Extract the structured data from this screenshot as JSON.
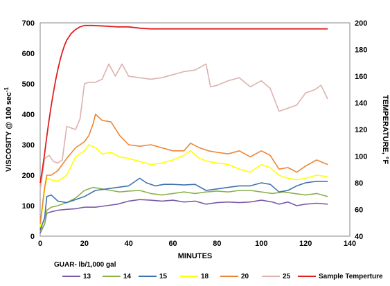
{
  "chart_data": {
    "type": "line",
    "title": "",
    "xlabel": "MINUTES",
    "ylabel_left": "VISCOSITY @ 100 sec",
    "ylabel_left_sup": "-1",
    "ylabel_right": "TEMPERATURE, °F",
    "legend_title": "GUAR- lb/1,000 gal",
    "legend_position": "bottom",
    "xlim": [
      0,
      140
    ],
    "ylim_left": [
      0,
      700
    ],
    "ylim_right": [
      40,
      200
    ],
    "x_ticks": [
      0,
      20,
      40,
      60,
      80,
      100,
      120,
      140
    ],
    "y_left_ticks": [
      0,
      100,
      200,
      300,
      400,
      500,
      600,
      700
    ],
    "y_right_ticks": [
      40,
      60,
      80,
      100,
      120,
      140,
      160,
      180,
      200
    ],
    "grid": false,
    "series": [
      {
        "name": "13",
        "axis": "left",
        "color": "#7b5aa6",
        "points": [
          [
            0,
            10
          ],
          [
            2,
            40
          ],
          [
            3,
            75
          ],
          [
            5,
            80
          ],
          [
            8,
            85
          ],
          [
            12,
            88
          ],
          [
            16,
            90
          ],
          [
            20,
            95
          ],
          [
            25,
            95
          ],
          [
            30,
            100
          ],
          [
            35,
            105
          ],
          [
            40,
            115
          ],
          [
            45,
            120
          ],
          [
            50,
            118
          ],
          [
            55,
            115
          ],
          [
            60,
            118
          ],
          [
            65,
            112
          ],
          [
            70,
            115
          ],
          [
            75,
            105
          ],
          [
            80,
            110
          ],
          [
            85,
            112
          ],
          [
            90,
            110
          ],
          [
            95,
            112
          ],
          [
            100,
            118
          ],
          [
            105,
            112
          ],
          [
            108,
            105
          ],
          [
            112,
            112
          ],
          [
            116,
            100
          ],
          [
            120,
            105
          ],
          [
            125,
            108
          ],
          [
            130,
            105
          ]
        ]
      },
      {
        "name": "14",
        "axis": "left",
        "color": "#8db14c",
        "points": [
          [
            0,
            15
          ],
          [
            2,
            40
          ],
          [
            3,
            85
          ],
          [
            5,
            95
          ],
          [
            8,
            100
          ],
          [
            12,
            110
          ],
          [
            16,
            125
          ],
          [
            20,
            150
          ],
          [
            24,
            160
          ],
          [
            28,
            155
          ],
          [
            32,
            150
          ],
          [
            36,
            145
          ],
          [
            40,
            148
          ],
          [
            45,
            150
          ],
          [
            50,
            140
          ],
          [
            55,
            135
          ],
          [
            60,
            140
          ],
          [
            65,
            145
          ],
          [
            70,
            140
          ],
          [
            75,
            145
          ],
          [
            80,
            148
          ],
          [
            85,
            145
          ],
          [
            90,
            150
          ],
          [
            95,
            150
          ],
          [
            100,
            145
          ],
          [
            105,
            140
          ],
          [
            110,
            145
          ],
          [
            115,
            140
          ],
          [
            120,
            135
          ],
          [
            125,
            140
          ],
          [
            130,
            130
          ]
        ]
      },
      {
        "name": "15",
        "axis": "left",
        "color": "#3d72b0",
        "points": [
          [
            0,
            20
          ],
          [
            2,
            60
          ],
          [
            3,
            130
          ],
          [
            5,
            135
          ],
          [
            8,
            115
          ],
          [
            12,
            110
          ],
          [
            16,
            120
          ],
          [
            20,
            130
          ],
          [
            25,
            150
          ],
          [
            30,
            155
          ],
          [
            35,
            160
          ],
          [
            40,
            165
          ],
          [
            45,
            190
          ],
          [
            48,
            175
          ],
          [
            52,
            165
          ],
          [
            56,
            170
          ],
          [
            60,
            170
          ],
          [
            65,
            168
          ],
          [
            70,
            170
          ],
          [
            75,
            150
          ],
          [
            80,
            155
          ],
          [
            85,
            160
          ],
          [
            90,
            165
          ],
          [
            95,
            165
          ],
          [
            100,
            175
          ],
          [
            104,
            170
          ],
          [
            108,
            145
          ],
          [
            112,
            150
          ],
          [
            116,
            165
          ],
          [
            120,
            175
          ],
          [
            125,
            180
          ],
          [
            130,
            180
          ]
        ]
      },
      {
        "name": "18",
        "axis": "left",
        "color": "#ffff00",
        "points": [
          [
            0,
            30
          ],
          [
            2,
            150
          ],
          [
            3,
            190
          ],
          [
            5,
            185
          ],
          [
            8,
            180
          ],
          [
            12,
            200
          ],
          [
            16,
            260
          ],
          [
            20,
            280
          ],
          [
            22,
            300
          ],
          [
            25,
            290
          ],
          [
            28,
            270
          ],
          [
            32,
            275
          ],
          [
            36,
            260
          ],
          [
            40,
            255
          ],
          [
            45,
            245
          ],
          [
            50,
            235
          ],
          [
            55,
            240
          ],
          [
            60,
            250
          ],
          [
            65,
            265
          ],
          [
            68,
            280
          ],
          [
            72,
            255
          ],
          [
            76,
            245
          ],
          [
            80,
            240
          ],
          [
            85,
            235
          ],
          [
            90,
            220
          ],
          [
            95,
            210
          ],
          [
            100,
            235
          ],
          [
            104,
            225
          ],
          [
            108,
            200
          ],
          [
            112,
            190
          ],
          [
            116,
            185
          ],
          [
            120,
            190
          ],
          [
            125,
            200
          ],
          [
            130,
            195
          ]
        ]
      },
      {
        "name": "20",
        "axis": "left",
        "color": "#ee8433",
        "points": [
          [
            0,
            40
          ],
          [
            2,
            160
          ],
          [
            3,
            200
          ],
          [
            5,
            200
          ],
          [
            8,
            215
          ],
          [
            12,
            255
          ],
          [
            16,
            290
          ],
          [
            20,
            310
          ],
          [
            22,
            330
          ],
          [
            24,
            370
          ],
          [
            25,
            400
          ],
          [
            28,
            380
          ],
          [
            32,
            375
          ],
          [
            36,
            330
          ],
          [
            40,
            300
          ],
          [
            45,
            295
          ],
          [
            50,
            300
          ],
          [
            55,
            290
          ],
          [
            60,
            280
          ],
          [
            65,
            280
          ],
          [
            68,
            305
          ],
          [
            72,
            290
          ],
          [
            76,
            280
          ],
          [
            80,
            275
          ],
          [
            85,
            270
          ],
          [
            90,
            280
          ],
          [
            95,
            260
          ],
          [
            100,
            280
          ],
          [
            104,
            265
          ],
          [
            108,
            220
          ],
          [
            112,
            225
          ],
          [
            116,
            210
          ],
          [
            120,
            230
          ],
          [
            125,
            250
          ],
          [
            130,
            235
          ]
        ]
      },
      {
        "name": "25",
        "axis": "left",
        "color": "#dcb1ae",
        "points": [
          [
            0,
            150
          ],
          [
            2,
            255
          ],
          [
            4,
            265
          ],
          [
            6,
            245
          ],
          [
            8,
            240
          ],
          [
            10,
            250
          ],
          [
            12,
            360
          ],
          [
            16,
            350
          ],
          [
            18,
            385
          ],
          [
            20,
            500
          ],
          [
            22,
            505
          ],
          [
            25,
            505
          ],
          [
            28,
            515
          ],
          [
            31,
            565
          ],
          [
            34,
            525
          ],
          [
            37,
            565
          ],
          [
            40,
            525
          ],
          [
            45,
            520
          ],
          [
            50,
            515
          ],
          [
            55,
            520
          ],
          [
            60,
            530
          ],
          [
            65,
            540
          ],
          [
            70,
            545
          ],
          [
            75,
            565
          ],
          [
            77,
            490
          ],
          [
            80,
            495
          ],
          [
            85,
            510
          ],
          [
            90,
            520
          ],
          [
            95,
            490
          ],
          [
            100,
            510
          ],
          [
            104,
            485
          ],
          [
            108,
            410
          ],
          [
            112,
            420
          ],
          [
            116,
            430
          ],
          [
            120,
            470
          ],
          [
            124,
            480
          ],
          [
            127,
            495
          ],
          [
            130,
            450
          ]
        ]
      },
      {
        "name": "Sample Temperture",
        "axis": "right",
        "color": "#e02020",
        "points": [
          [
            0,
            80
          ],
          [
            1,
            90
          ],
          [
            2,
            102
          ],
          [
            3,
            115
          ],
          [
            4,
            127
          ],
          [
            5,
            138
          ],
          [
            6,
            148
          ],
          [
            7,
            157
          ],
          [
            8,
            165
          ],
          [
            9,
            172
          ],
          [
            10,
            178
          ],
          [
            11,
            183
          ],
          [
            12,
            187
          ],
          [
            14,
            192
          ],
          [
            16,
            195
          ],
          [
            18,
            197
          ],
          [
            20,
            198
          ],
          [
            24,
            198
          ],
          [
            30,
            197.5
          ],
          [
            35,
            197
          ],
          [
            40,
            197
          ],
          [
            45,
            196
          ],
          [
            50,
            195.5
          ],
          [
            60,
            195.5
          ],
          [
            80,
            195.5
          ],
          [
            100,
            195.5
          ],
          [
            120,
            195.5
          ],
          [
            130,
            195.5
          ]
        ]
      }
    ]
  }
}
